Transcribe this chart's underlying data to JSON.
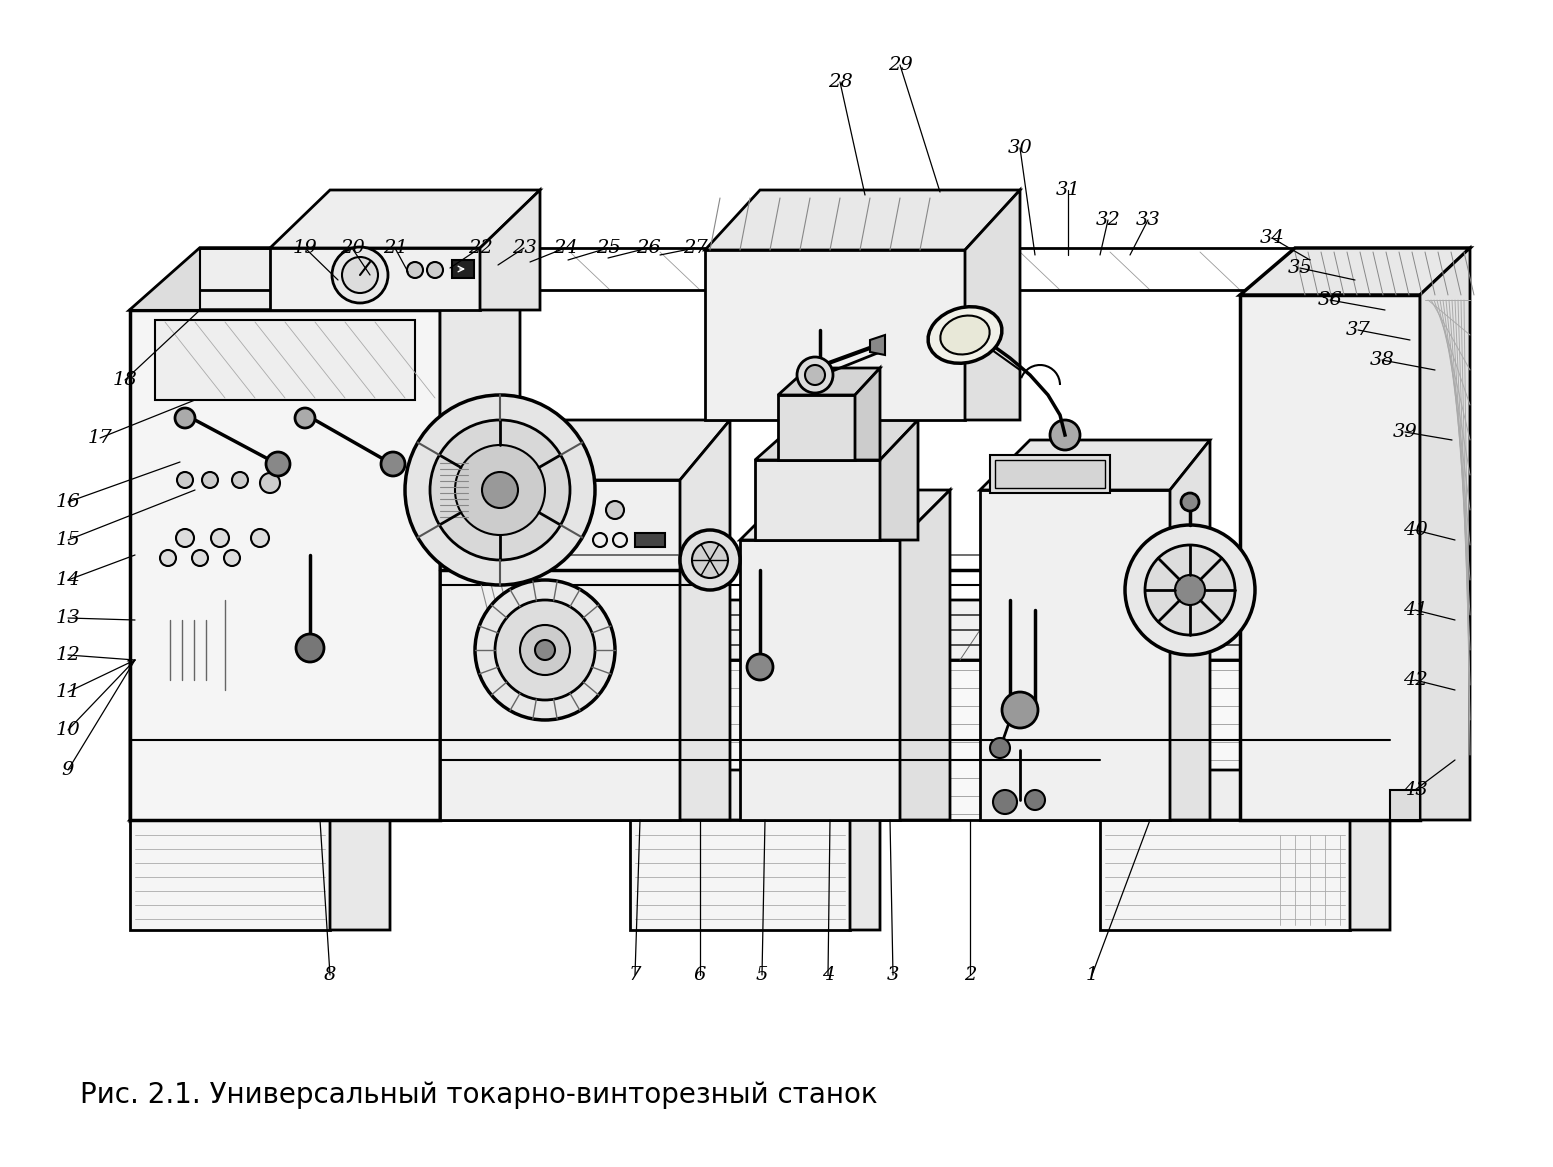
{
  "title": "Рис. 2.1. Универсальный токарно-винторезный станок",
  "bg_color": "#ffffff",
  "line_color": "#000000",
  "title_fontsize": 20,
  "label_fontsize": 14,
  "labels_bottom": [
    [
      "1",
      1092,
      980
    ],
    [
      "2",
      970,
      980
    ],
    [
      "3",
      893,
      980
    ],
    [
      "4",
      828,
      980
    ],
    [
      "5",
      762,
      980
    ],
    [
      "6",
      700,
      980
    ],
    [
      "7",
      635,
      980
    ],
    [
      "8",
      330,
      980
    ]
  ],
  "labels_left": [
    [
      "9",
      68,
      770
    ],
    [
      "10",
      68,
      730
    ],
    [
      "11",
      68,
      692
    ],
    [
      "12",
      68,
      655
    ],
    [
      "13",
      68,
      618
    ],
    [
      "14",
      68,
      580
    ],
    [
      "15",
      68,
      540
    ],
    [
      "16",
      68,
      502
    ],
    [
      "17",
      100,
      438
    ],
    [
      "18",
      125,
      380
    ]
  ],
  "labels_top_mid": [
    [
      "19",
      305,
      248
    ],
    [
      "20",
      352,
      248
    ],
    [
      "21",
      395,
      248
    ],
    [
      "22",
      480,
      248
    ],
    [
      "23",
      524,
      248
    ],
    [
      "24",
      565,
      248
    ],
    [
      "25",
      608,
      248
    ],
    [
      "26",
      648,
      248
    ],
    [
      "27",
      695,
      248
    ]
  ],
  "labels_top_right": [
    [
      "28",
      840,
      82
    ],
    [
      "29",
      900,
      65
    ],
    [
      "30",
      1020,
      148
    ],
    [
      "31",
      1068,
      190
    ],
    [
      "32",
      1108,
      220
    ],
    [
      "33",
      1148,
      220
    ],
    [
      "34",
      1272,
      238
    ],
    [
      "35",
      1300,
      268
    ],
    [
      "36",
      1330,
      300
    ],
    [
      "37",
      1358,
      330
    ],
    [
      "38",
      1382,
      360
    ],
    [
      "39",
      1405,
      432
    ],
    [
      "40",
      1415,
      530
    ],
    [
      "41",
      1415,
      610
    ],
    [
      "42",
      1415,
      680
    ],
    [
      "43",
      1415,
      790
    ]
  ]
}
